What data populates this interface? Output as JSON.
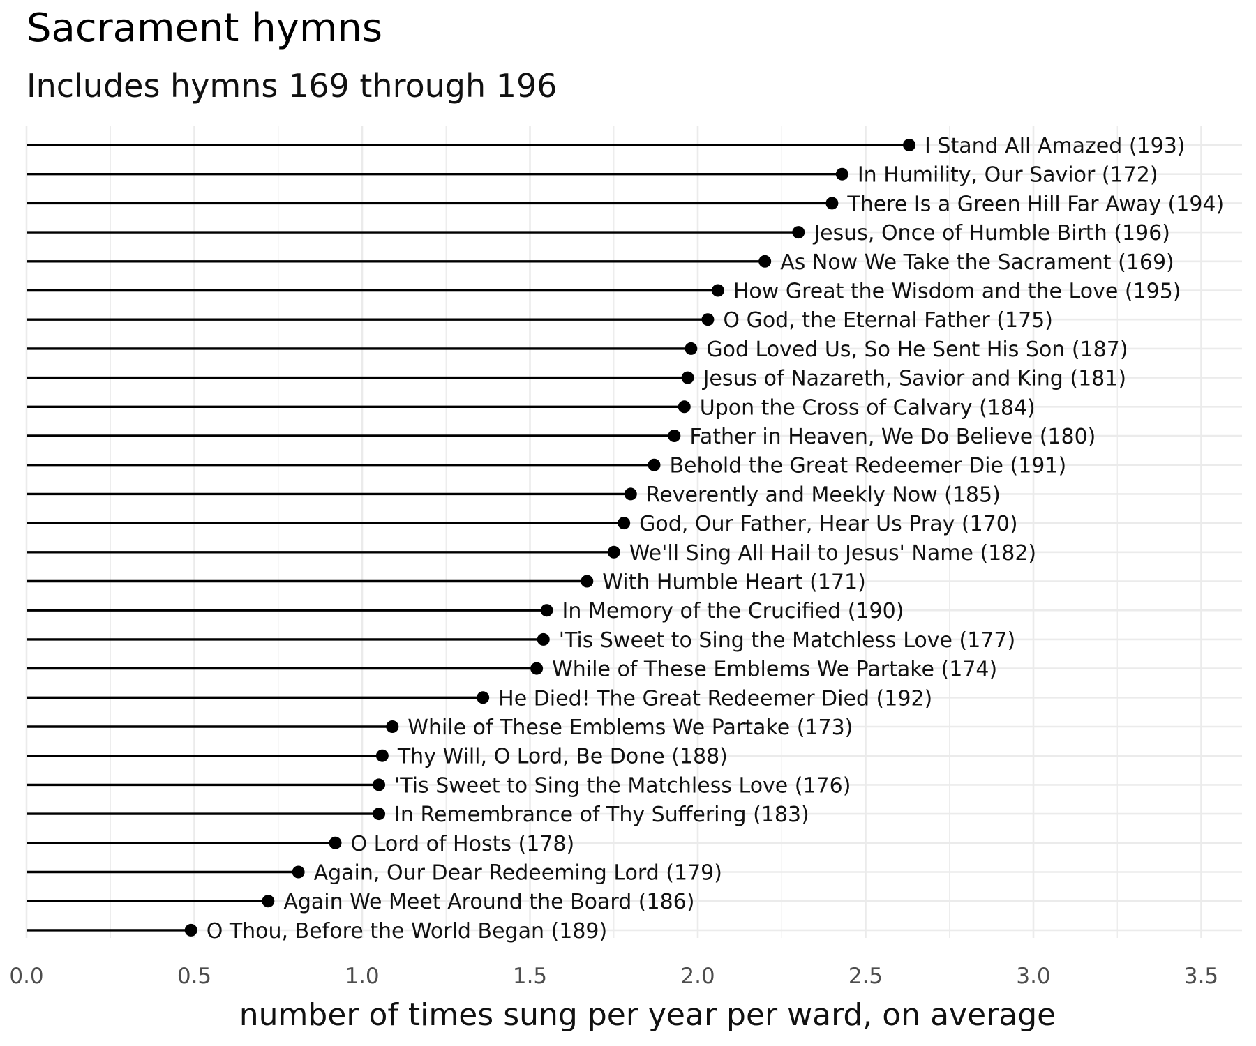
{
  "title": "Sacrament hymns",
  "subtitle": "Includes hymns 169 through 196",
  "chart_data": {
    "type": "scatter",
    "style": "lollipop",
    "orientation": "horizontal",
    "title": "Sacrament hymns",
    "subtitle": "Includes hymns 169 through 196",
    "xlabel": "number of times sung per year per ward, on average",
    "ylabel": "",
    "xlim": [
      0,
      3.6
    ],
    "xticks": [
      0.0,
      0.5,
      1.0,
      1.5,
      2.0,
      2.5,
      3.0,
      3.5
    ],
    "xtick_labels": [
      "0.0",
      "0.5",
      "1.0",
      "1.5",
      "2.0",
      "2.5",
      "3.0",
      "3.5"
    ],
    "grid": true,
    "legend": "none",
    "colors": {
      "marker": "#000000",
      "stem": "#000000",
      "grid": "#ebebeb",
      "text": "#111111",
      "tick_text": "#4d4d4d"
    },
    "points": [
      {
        "label": "I Stand All Amazed (193)",
        "value": 2.63
      },
      {
        "label": "In Humility, Our Savior (172)",
        "value": 2.43
      },
      {
        "label": "There Is a Green Hill Far Away (194)",
        "value": 2.4
      },
      {
        "label": "Jesus, Once of Humble Birth (196)",
        "value": 2.3
      },
      {
        "label": "As Now We Take the Sacrament (169)",
        "value": 2.2
      },
      {
        "label": "How Great the Wisdom and the Love (195)",
        "value": 2.06
      },
      {
        "label": "O God, the Eternal Father (175)",
        "value": 2.03
      },
      {
        "label": "God Loved Us, So He Sent His Son (187)",
        "value": 1.98
      },
      {
        "label": "Jesus of Nazareth, Savior and King (181)",
        "value": 1.97
      },
      {
        "label": "Upon the Cross of Calvary (184)",
        "value": 1.96
      },
      {
        "label": "Father in Heaven, We Do Believe (180)",
        "value": 1.93
      },
      {
        "label": "Behold the Great Redeemer Die (191)",
        "value": 1.87
      },
      {
        "label": "Reverently and Meekly Now (185)",
        "value": 1.8
      },
      {
        "label": "God, Our Father, Hear Us Pray (170)",
        "value": 1.78
      },
      {
        "label": "We'll Sing All Hail to Jesus' Name (182)",
        "value": 1.75
      },
      {
        "label": "With Humble Heart (171)",
        "value": 1.67
      },
      {
        "label": "In Memory of the Crucified (190)",
        "value": 1.55
      },
      {
        "label": "'Tis Sweet to Sing the Matchless Love (177)",
        "value": 1.54
      },
      {
        "label": "While of These Emblems We Partake (174)",
        "value": 1.52
      },
      {
        "label": "He Died! The Great Redeemer Died (192)",
        "value": 1.36
      },
      {
        "label": "While of These Emblems We Partake (173)",
        "value": 1.09
      },
      {
        "label": "Thy Will, O Lord, Be Done (188)",
        "value": 1.06
      },
      {
        "label": "'Tis Sweet to Sing the Matchless Love (176)",
        "value": 1.05
      },
      {
        "label": "In Remembrance of Thy Suffering (183)",
        "value": 1.05
      },
      {
        "label": "O Lord of Hosts (178)",
        "value": 0.92
      },
      {
        "label": "Again, Our Dear Redeeming Lord (179)",
        "value": 0.81
      },
      {
        "label": "Again We Meet Around the Board (186)",
        "value": 0.72
      },
      {
        "label": "O Thou, Before the World Began (189)",
        "value": 0.49
      }
    ]
  }
}
